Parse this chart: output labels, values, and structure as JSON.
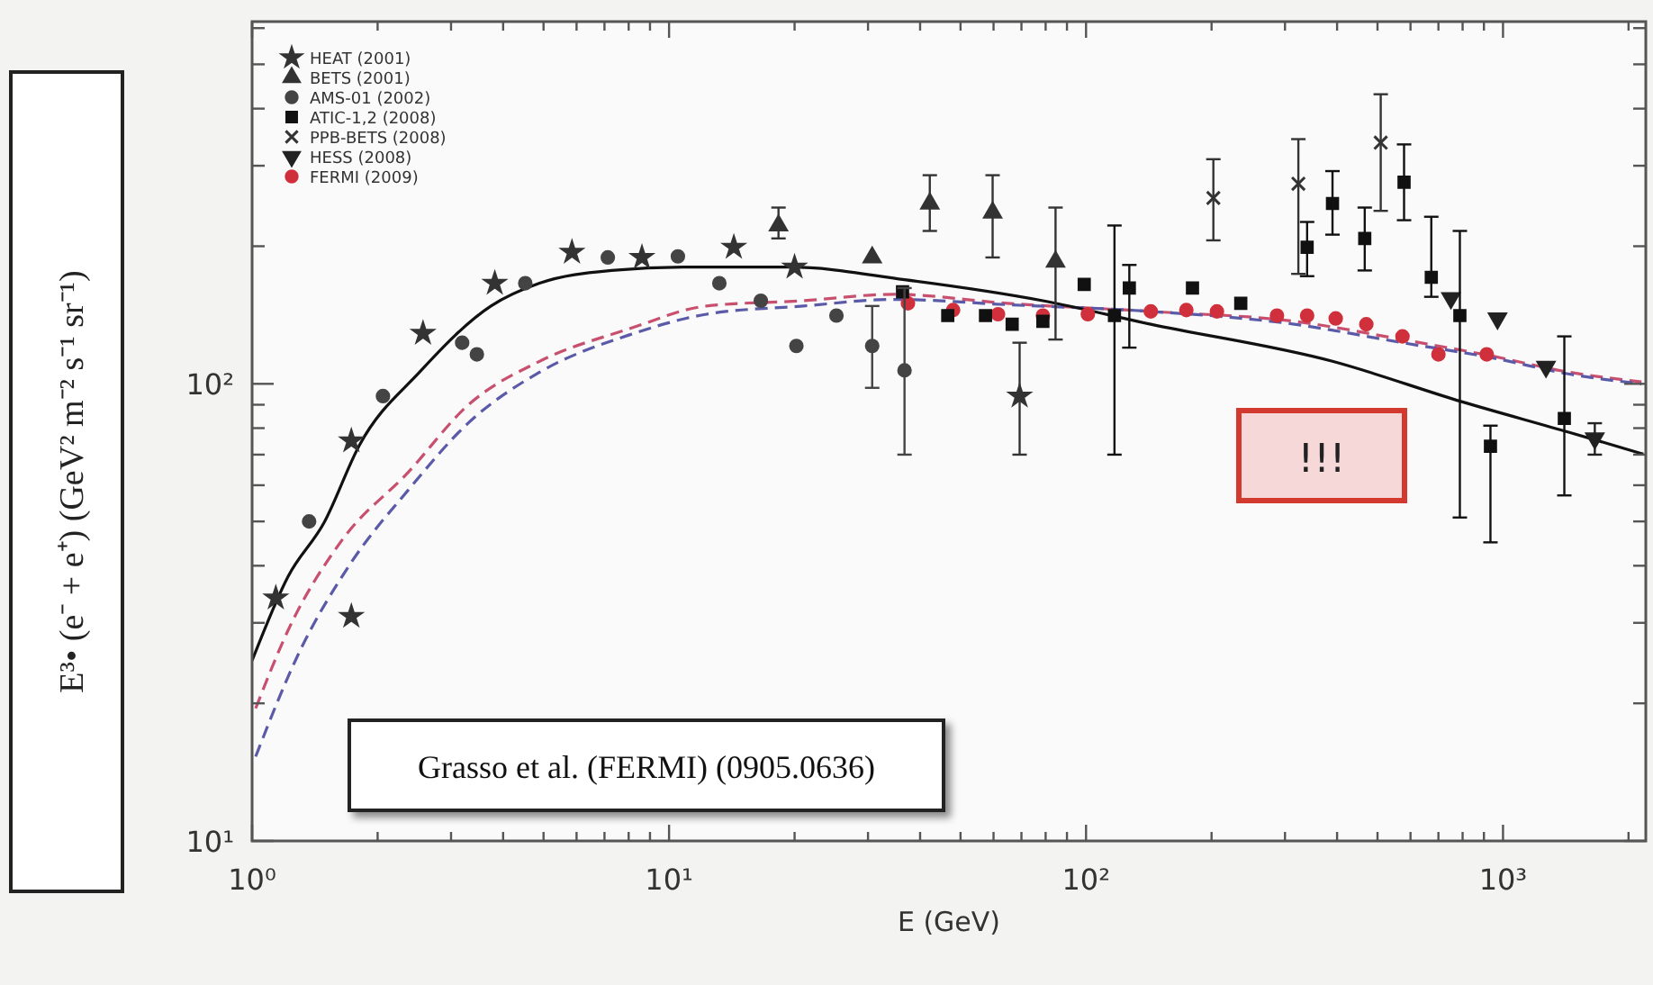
{
  "chart_data": {
    "type": "scatter",
    "xlabel": "E (GeV)",
    "ylabel": "E³• (e⁻ + e⁺)   (GeV² m⁻² s⁻¹ sr⁻¹)",
    "log": "xy",
    "legend": "top left",
    "grid": false,
    "xlim": [
      1,
      2200
    ],
    "ylim": [
      10,
      620
    ],
    "xticks": [
      {
        "value": 1,
        "label": "10⁰"
      },
      {
        "value": 2,
        "label": null
      },
      {
        "value": 3,
        "label": null
      },
      {
        "value": 4,
        "label": null
      },
      {
        "value": 5,
        "label": null
      },
      {
        "value": 6,
        "label": null
      },
      {
        "value": 7,
        "label": null
      },
      {
        "value": 8,
        "label": null
      },
      {
        "value": 9,
        "label": null
      },
      {
        "value": 10,
        "label": "10¹"
      },
      {
        "value": 20,
        "label": null
      },
      {
        "value": 30,
        "label": null
      },
      {
        "value": 40,
        "label": null
      },
      {
        "value": 50,
        "label": null
      },
      {
        "value": 60,
        "label": null
      },
      {
        "value": 70,
        "label": null
      },
      {
        "value": 80,
        "label": null
      },
      {
        "value": 90,
        "label": null
      },
      {
        "value": 100,
        "label": "10²"
      },
      {
        "value": 200,
        "label": null
      },
      {
        "value": 300,
        "label": null
      },
      {
        "value": 400,
        "label": null
      },
      {
        "value": 500,
        "label": null
      },
      {
        "value": 600,
        "label": null
      },
      {
        "value": 700,
        "label": null
      },
      {
        "value": 800,
        "label": null
      },
      {
        "value": 900,
        "label": null
      },
      {
        "value": 1000,
        "label": "10³"
      },
      {
        "value": 2000,
        "label": null
      }
    ],
    "yticks": [
      {
        "value": 10,
        "label": "10¹"
      },
      {
        "value": 20,
        "label": null
      },
      {
        "value": 30,
        "label": null
      },
      {
        "value": 40,
        "label": null
      },
      {
        "value": 50,
        "label": null
      },
      {
        "value": 60,
        "label": null
      },
      {
        "value": 70,
        "label": null
      },
      {
        "value": 80,
        "label": null
      },
      {
        "value": 90,
        "label": null
      },
      {
        "value": 100,
        "label": "10²"
      },
      {
        "value": 200,
        "label": null
      },
      {
        "value": 300,
        "label": null
      },
      {
        "value": 400,
        "label": null
      },
      {
        "value": 500,
        "label": null
      },
      {
        "value": 600,
        "label": null
      }
    ],
    "annotations": [
      "Grasso et al. (FERMI) (0905.0636)",
      "!!!"
    ],
    "series": [
      {
        "name": "HEAT (2001)",
        "color": "#333333",
        "marker": "star",
        "x": [
          1.14,
          1.73,
          1.73,
          2.57,
          3.82,
          5.85,
          8.61,
          14.3,
          20,
          69.3
        ],
        "values": [
          34,
          75,
          31,
          129,
          166,
          194,
          189,
          199,
          180,
          94
        ],
        "errors": [
          null,
          null,
          null,
          null,
          null,
          null,
          null,
          null,
          null,
          [
            70,
            123
          ]
        ]
      },
      {
        "name": "BETS (2001)",
        "color": "#333333",
        "marker": "triangle",
        "x": [
          18.3,
          30.7,
          42.2,
          59.7,
          84.5
        ],
        "values": [
          222,
          189,
          248,
          237,
          185
        ],
        "errors": [
          [
            208,
            243
          ],
          null,
          [
            216,
            286
          ],
          [
            189,
            286
          ],
          [
            125,
            243
          ]
        ]
      },
      {
        "name": "AMS-01 (2002)",
        "color": "#444444",
        "marker": "circle",
        "x": [
          1.37,
          2.06,
          3.19,
          3.46,
          4.52,
          7.13,
          10.5,
          13.2,
          16.6,
          20.2,
          25.2,
          30.7,
          36.7
        ],
        "values": [
          50,
          94,
          123,
          116,
          166,
          189,
          190,
          166,
          152,
          121,
          141,
          121,
          107
        ],
        "errors": [
          null,
          null,
          null,
          null,
          null,
          null,
          null,
          null,
          null,
          null,
          null,
          [
            98,
            148
          ],
          [
            70,
            162
          ]
        ]
      },
      {
        "name": "ATIC-1,2 (2008)",
        "color": "#111111",
        "marker": "square",
        "x": [
          36.3,
          46.6,
          57.4,
          66.5,
          78.8,
          99,
          117,
          127,
          180,
          235,
          339,
          390,
          466,
          579,
          673,
          788,
          933,
          1403
        ],
        "values": [
          159,
          141,
          141,
          135,
          137,
          165,
          141,
          162,
          162,
          150,
          199,
          248,
          208,
          276,
          171,
          141,
          73,
          84
        ],
        "errors": [
          null,
          null,
          null,
          null,
          null,
          null,
          [
            70,
            222
          ],
          [
            120,
            182
          ],
          null,
          null,
          [
            172,
            226
          ],
          [
            212,
            292
          ],
          [
            177,
            243
          ],
          [
            228,
            334
          ],
          [
            155,
            232
          ],
          [
            51,
            216
          ],
          [
            45,
            81
          ],
          [
            57,
            127
          ]
        ]
      },
      {
        "name": "PPB-BETS (2008)",
        "color": "#333333",
        "marker": "cross",
        "x": [
          202,
          323,
          509
        ],
        "values": [
          255,
          274,
          337
        ],
        "errors": [
          [
            206,
            310
          ],
          [
            174,
            343
          ],
          [
            239,
            430
          ]
        ]
      },
      {
        "name": "HESS (2008)",
        "color": "#222222",
        "marker": "triangle-down",
        "x": [
          750,
          970,
          1268,
          1660
        ],
        "values": [
          154,
          139,
          109,
          76
        ],
        "errors": [
          null,
          null,
          null,
          [
            70,
            82
          ]
        ]
      },
      {
        "name": "FERMI (2009)",
        "color": "#d0303c",
        "marker": "circle",
        "x": [
          37.4,
          48,
          61.5,
          78.8,
          101,
          143,
          174,
          206,
          287,
          339,
          397,
          470,
          574,
          700,
          914
        ],
        "values": [
          150,
          145,
          142,
          141,
          142,
          144,
          145,
          144,
          141,
          141,
          139,
          135,
          127,
          116,
          116
        ]
      },
      {
        "type": "line",
        "color": "#111111",
        "line_style": "solid",
        "marker": "none",
        "x": [
          1,
          1.22,
          1.49,
          1.81,
          2.52,
          3.74,
          4.89,
          7.28,
          10.8,
          19.6,
          36.7,
          78.8,
          143,
          390,
          796,
          1443,
          2170
        ],
        "values": [
          24.8,
          37.9,
          49.8,
          73.5,
          106,
          148,
          166,
          177,
          180,
          180,
          169,
          152,
          135,
          112,
          91.4,
          78.3,
          70.2
        ]
      },
      {
        "type": "line",
        "color": "#5a5aa8",
        "line_style": "dashed",
        "marker": "none",
        "x": [
          1.02,
          1.28,
          1.73,
          2.37,
          3.29,
          4.89,
          8.04,
          12.3,
          21,
          34.6,
          64.6,
          143,
          316,
          574,
          942,
          1443,
          2148
        ],
        "values": [
          15.3,
          25.2,
          40.7,
          58.6,
          81.9,
          106,
          128,
          142,
          148,
          153,
          149,
          144,
          135,
          123,
          114,
          105,
          100
        ]
      },
      {
        "type": "line",
        "color": "#c8506e",
        "line_style": "dashed",
        "marker": "none",
        "x": [
          1.02,
          1.22,
          1.64,
          2.37,
          3.29,
          4.89,
          8.04,
          12.3,
          21,
          34.6,
          64.6,
          143,
          316,
          574,
          942,
          1443,
          2148
        ],
        "values": [
          19.5,
          28.9,
          45.4,
          64.1,
          89.7,
          112,
          132,
          148,
          152,
          157,
          150,
          144,
          137,
          125,
          115,
          106,
          101
        ]
      }
    ]
  }
}
